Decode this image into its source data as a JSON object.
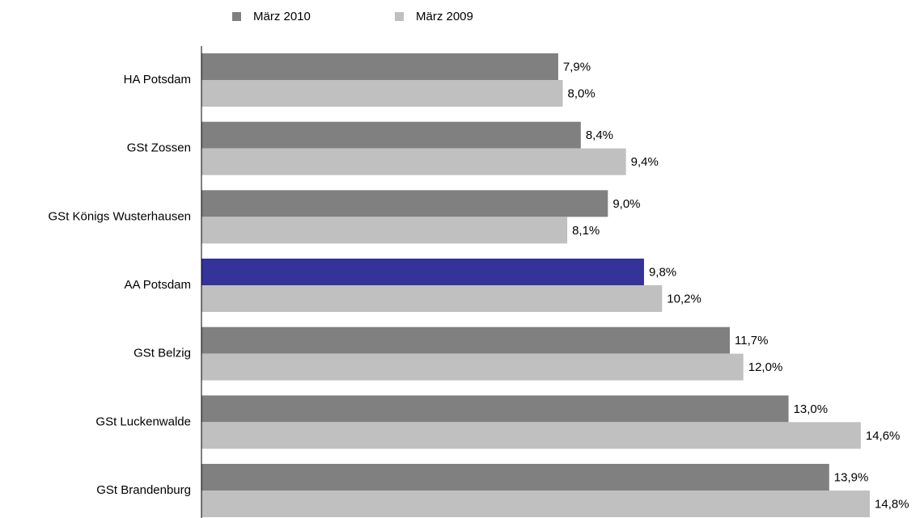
{
  "chart_data": {
    "type": "bar",
    "orientation": "horizontal",
    "categories": [
      "HA Potsdam",
      "GSt Zossen",
      "GSt Königs Wusterhausen",
      "AA Potsdam",
      "GSt Belzig",
      "GSt Luckenwalde",
      "GSt Brandenburg"
    ],
    "series": [
      {
        "name": "März 2010",
        "color": "#808080",
        "colors": [
          "#808080",
          "#808080",
          "#808080",
          "#333399",
          "#808080",
          "#808080",
          "#808080"
        ],
        "values": [
          7.9,
          8.4,
          9.0,
          9.8,
          11.7,
          13.0,
          13.9
        ],
        "value_labels": [
          "7,9%",
          "8,4%",
          "9,0%",
          "9,8%",
          "11,7%",
          "13,0%",
          "13,9%"
        ]
      },
      {
        "name": "März 2009",
        "color": "#c0c0c0",
        "values": [
          8.0,
          9.4,
          8.1,
          10.2,
          12.0,
          14.6,
          14.8
        ],
        "value_labels": [
          "8,0%",
          "9,4%",
          "8,1%",
          "10,2%",
          "12,0%",
          "14,6%",
          "14,8%"
        ]
      }
    ],
    "xlim": [
      0,
      16
    ],
    "legend": "top"
  }
}
